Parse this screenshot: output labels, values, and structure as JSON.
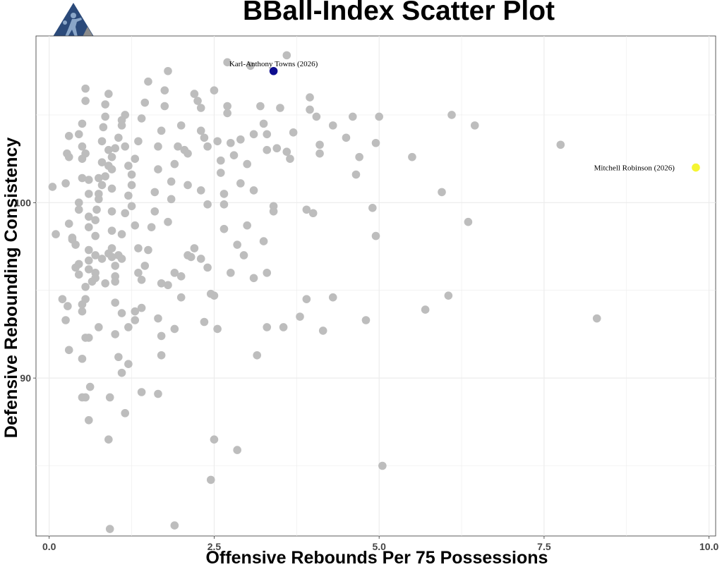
{
  "chart_data": {
    "type": "scatter",
    "title": "BBall-Index Scatter Plot",
    "xlabel": "Offensive Rebounds Per 75 Possessions",
    "ylabel": "Defensive Rebounding Consistency",
    "xlim": [
      -0.2,
      10.1
    ],
    "ylim": [
      81,
      109.5
    ],
    "x_ticks": [
      0.0,
      2.5,
      5.0,
      7.5,
      10.0
    ],
    "x_tick_labels": [
      "0.0",
      "2.5",
      "5.0",
      "7.5",
      "10.0"
    ],
    "y_ticks": [
      90,
      100
    ],
    "y_tick_labels": [
      "90",
      "100"
    ],
    "grid": true,
    "colors": {
      "background": "#ffffff",
      "grid": "#ebebeb",
      "point": "#bdbdbd",
      "highlight_towns": "#0d0d8f",
      "highlight_robinson": "#f5f532",
      "logo_blue": "#2b4a7a",
      "logo_gray": "#8c8c8c"
    },
    "highlights": [
      {
        "label": "Karl-Anthony Towns (2026)",
        "x": 3.4,
        "y": 107.5,
        "color": "#0d0d8f",
        "label_anchor": "above"
      },
      {
        "label": "Mitchell Robinson (2026)",
        "x": 9.8,
        "y": 102.0,
        "color": "#f5f532",
        "label_anchor": "left"
      }
    ],
    "points": [
      [
        0.05,
        100.9
      ],
      [
        0.1,
        98.2
      ],
      [
        0.2,
        94.5
      ],
      [
        0.25,
        93.3
      ],
      [
        0.28,
        94.1
      ],
      [
        0.3,
        91.6
      ],
      [
        0.25,
        101.1
      ],
      [
        0.27,
        102.8
      ],
      [
        0.3,
        103.8
      ],
      [
        0.3,
        102.6
      ],
      [
        0.35,
        98.0
      ],
      [
        0.4,
        97.6
      ],
      [
        0.4,
        96.3
      ],
      [
        0.45,
        95.9
      ],
      [
        0.45,
        99.6
      ],
      [
        0.45,
        100.0
      ],
      [
        0.5,
        101.4
      ],
      [
        0.5,
        102.5
      ],
      [
        0.5,
        103.2
      ],
      [
        0.45,
        103.9
      ],
      [
        0.5,
        104.5
      ],
      [
        0.55,
        102.8
      ],
      [
        0.55,
        105.8
      ],
      [
        0.55,
        106.5
      ],
      [
        0.6,
        101.3
      ],
      [
        0.6,
        100.5
      ],
      [
        0.6,
        99.2
      ],
      [
        0.6,
        98.6
      ],
      [
        0.6,
        97.3
      ],
      [
        0.6,
        96.7
      ],
      [
        0.6,
        96.2
      ],
      [
        0.65,
        95.5
      ],
      [
        0.7,
        96.0
      ],
      [
        0.7,
        97.0
      ],
      [
        0.7,
        98.1
      ],
      [
        0.72,
        99.6
      ],
      [
        0.75,
        100.2
      ],
      [
        0.75,
        101.4
      ],
      [
        0.8,
        102.3
      ],
      [
        0.8,
        103.5
      ],
      [
        0.82,
        104.3
      ],
      [
        0.85,
        105.6
      ],
      [
        0.85,
        104.9
      ],
      [
        0.9,
        106.2
      ],
      [
        0.9,
        103.0
      ],
      [
        0.95,
        101.9
      ],
      [
        0.95,
        100.8
      ],
      [
        0.95,
        99.5
      ],
      [
        0.95,
        98.4
      ],
      [
        0.95,
        97.4
      ],
      [
        1.0,
        96.4
      ],
      [
        1.0,
        95.5
      ],
      [
        1.0,
        94.3
      ],
      [
        0.5,
        93.8
      ],
      [
        0.5,
        94.2
      ],
      [
        0.55,
        94.5
      ],
      [
        0.5,
        91.1
      ],
      [
        0.55,
        92.3
      ],
      [
        0.5,
        88.9
      ],
      [
        0.55,
        88.9
      ],
      [
        0.6,
        87.6
      ],
      [
        0.62,
        89.5
      ],
      [
        0.6,
        92.3
      ],
      [
        0.75,
        92.9
      ],
      [
        0.9,
        86.5
      ],
      [
        0.92,
        88.9
      ],
      [
        0.92,
        81.4
      ],
      [
        1.0,
        92.5
      ],
      [
        1.05,
        91.2
      ],
      [
        1.1,
        90.3
      ],
      [
        1.15,
        88.0
      ],
      [
        1.2,
        90.8
      ],
      [
        1.1,
        93.7
      ],
      [
        1.2,
        92.9
      ],
      [
        1.3,
        93.8
      ],
      [
        1.3,
        93.3
      ],
      [
        1.4,
        94.0
      ],
      [
        1.4,
        89.2
      ],
      [
        1.65,
        89.1
      ],
      [
        1.7,
        91.3
      ],
      [
        1.7,
        92.4
      ],
      [
        1.65,
        93.4
      ],
      [
        1.7,
        95.4
      ],
      [
        1.8,
        95.3
      ],
      [
        1.9,
        96.0
      ],
      [
        1.9,
        92.8
      ],
      [
        1.9,
        81.6
      ],
      [
        2.0,
        94.6
      ],
      [
        2.0,
        95.8
      ],
      [
        2.1,
        97.0
      ],
      [
        1.05,
        97.0
      ],
      [
        1.1,
        98.2
      ],
      [
        1.15,
        99.4
      ],
      [
        1.2,
        100.4
      ],
      [
        1.25,
        101.6
      ],
      [
        1.3,
        102.5
      ],
      [
        1.35,
        103.5
      ],
      [
        1.4,
        104.8
      ],
      [
        1.45,
        105.7
      ],
      [
        1.5,
        106.9
      ],
      [
        1.1,
        104.7
      ],
      [
        1.15,
        103.2
      ],
      [
        1.2,
        102.1
      ],
      [
        1.25,
        101.0
      ],
      [
        1.25,
        99.8
      ],
      [
        1.3,
        98.7
      ],
      [
        1.35,
        97.4
      ],
      [
        1.35,
        96.0
      ],
      [
        1.4,
        95.6
      ],
      [
        1.45,
        96.4
      ],
      [
        1.5,
        97.3
      ],
      [
        1.55,
        98.6
      ],
      [
        1.6,
        99.5
      ],
      [
        1.6,
        100.6
      ],
      [
        1.65,
        101.9
      ],
      [
        1.65,
        103.2
      ],
      [
        1.7,
        104.1
      ],
      [
        1.75,
        105.5
      ],
      [
        1.75,
        106.4
      ],
      [
        1.8,
        107.5
      ],
      [
        1.8,
        98.9
      ],
      [
        1.85,
        100.2
      ],
      [
        1.85,
        101.2
      ],
      [
        1.9,
        102.2
      ],
      [
        1.95,
        103.2
      ],
      [
        2.0,
        104.4
      ],
      [
        2.05,
        103.0
      ],
      [
        2.1,
        102.8
      ],
      [
        2.1,
        101.0
      ],
      [
        2.15,
        96.9
      ],
      [
        2.2,
        97.4
      ],
      [
        2.3,
        96.8
      ],
      [
        2.4,
        96.3
      ],
      [
        2.35,
        93.2
      ],
      [
        2.45,
        94.8
      ],
      [
        2.5,
        94.7
      ],
      [
        2.55,
        92.8
      ],
      [
        2.45,
        84.2
      ],
      [
        2.5,
        86.5
      ],
      [
        2.85,
        85.9
      ],
      [
        2.2,
        106.2
      ],
      [
        2.25,
        105.8
      ],
      [
        2.3,
        105.4
      ],
      [
        2.3,
        104.1
      ],
      [
        2.35,
        103.7
      ],
      [
        2.4,
        103.2
      ],
      [
        2.3,
        100.7
      ],
      [
        2.4,
        99.9
      ],
      [
        2.5,
        106.4
      ],
      [
        2.55,
        103.5
      ],
      [
        2.6,
        102.4
      ],
      [
        2.6,
        101.7
      ],
      [
        2.65,
        100.5
      ],
      [
        2.65,
        99.9
      ],
      [
        2.65,
        98.5
      ],
      [
        2.7,
        105.5
      ],
      [
        2.7,
        105.1
      ],
      [
        2.75,
        103.4
      ],
      [
        2.8,
        102.7
      ],
      [
        2.9,
        101.1
      ],
      [
        2.9,
        103.6
      ],
      [
        3.0,
        102.2
      ],
      [
        3.0,
        98.7
      ],
      [
        2.85,
        97.6
      ],
      [
        2.95,
        97.0
      ],
      [
        2.75,
        96.0
      ],
      [
        2.7,
        108.0
      ],
      [
        3.05,
        107.8
      ],
      [
        3.1,
        103.9
      ],
      [
        3.1,
        100.7
      ],
      [
        3.1,
        95.7
      ],
      [
        3.15,
        91.3
      ],
      [
        3.2,
        105.5
      ],
      [
        3.25,
        104.5
      ],
      [
        3.3,
        103.9
      ],
      [
        3.3,
        103.0
      ],
      [
        3.25,
        97.8
      ],
      [
        3.3,
        96.0
      ],
      [
        3.3,
        92.9
      ],
      [
        3.4,
        99.8
      ],
      [
        3.4,
        99.5
      ],
      [
        3.45,
        103.1
      ],
      [
        3.5,
        105.4
      ],
      [
        3.55,
        92.9
      ],
      [
        3.6,
        102.9
      ],
      [
        3.6,
        108.4
      ],
      [
        3.65,
        102.5
      ],
      [
        3.7,
        104.0
      ],
      [
        3.8,
        93.5
      ],
      [
        3.9,
        94.5
      ],
      [
        3.9,
        99.6
      ],
      [
        3.95,
        105.3
      ],
      [
        3.95,
        106.0
      ],
      [
        4.0,
        99.4
      ],
      [
        4.05,
        104.9
      ],
      [
        4.1,
        102.8
      ],
      [
        4.1,
        103.3
      ],
      [
        4.15,
        92.7
      ],
      [
        4.3,
        104.4
      ],
      [
        4.3,
        94.6
      ],
      [
        4.5,
        103.7
      ],
      [
        4.6,
        104.9
      ],
      [
        4.65,
        101.6
      ],
      [
        4.7,
        102.6
      ],
      [
        4.8,
        93.3
      ],
      [
        4.9,
        99.7
      ],
      [
        4.95,
        103.4
      ],
      [
        4.95,
        98.1
      ],
      [
        5.0,
        104.9
      ],
      [
        5.05,
        85.0
      ],
      [
        5.5,
        102.6
      ],
      [
        5.7,
        93.9
      ],
      [
        5.95,
        100.6
      ],
      [
        6.05,
        94.7
      ],
      [
        6.1,
        105.0
      ],
      [
        6.35,
        98.9
      ],
      [
        6.45,
        104.4
      ],
      [
        7.75,
        103.3
      ],
      [
        8.3,
        93.4
      ],
      [
        0.3,
        98.8
      ],
      [
        0.35,
        97.9
      ],
      [
        0.45,
        96.5
      ],
      [
        0.55,
        95.2
      ],
      [
        0.7,
        95.7
      ],
      [
        0.8,
        96.8
      ],
      [
        0.85,
        95.4
      ],
      [
        0.9,
        97.1
      ],
      [
        0.95,
        96.9
      ],
      [
        1.0,
        95.8
      ],
      [
        1.1,
        96.8
      ],
      [
        0.7,
        99.0
      ],
      [
        0.75,
        100.5
      ],
      [
        0.8,
        101.0
      ],
      [
        0.85,
        101.5
      ],
      [
        0.9,
        102.1
      ],
      [
        0.95,
        102.6
      ],
      [
        1.0,
        103.1
      ],
      [
        1.05,
        103.7
      ],
      [
        1.1,
        104.4
      ],
      [
        1.15,
        105.0
      ]
    ]
  },
  "logo": {
    "name": "BBall-Index logo"
  }
}
